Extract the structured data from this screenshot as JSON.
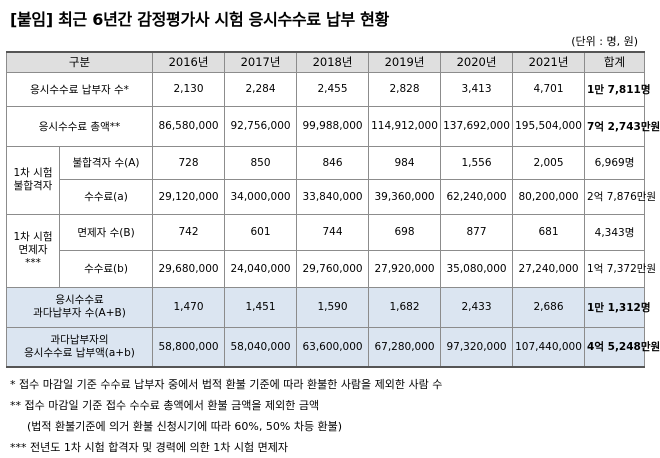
{
  "title": "[붙임] 최근 6년간 감정평가사 시험 응시수수료 납부 현황",
  "unit": "(단위 : 명, 원)",
  "header": {
    "category": "구분",
    "years": [
      "2016년",
      "2017년",
      "2018년",
      "2019년",
      "2020년",
      "2021년"
    ],
    "total": "합계"
  },
  "rows": {
    "payers": {
      "label": "응시수수료 납부자 수*",
      "values": [
        "2,130",
        "2,284",
        "2,455",
        "2,828",
        "3,413",
        "4,701"
      ],
      "total": "1만 7,811명"
    },
    "amount": {
      "label": "응시수수료 총액**",
      "values": [
        "86,580,000",
        "92,756,000",
        "99,988,000",
        "114,912,000",
        "137,692,000",
        "195,504,000"
      ],
      "total": "7억 2,743만원"
    },
    "fail_group": "1차 시험 불합격자",
    "fail_count": {
      "label": "불합격자 수(A)",
      "values": [
        "728",
        "850",
        "846",
        "984",
        "1,556",
        "2,005"
      ],
      "total": "6,969명"
    },
    "fail_fee": {
      "label": "수수료(a)",
      "values": [
        "29,120,000",
        "34,000,000",
        "33,840,000",
        "39,360,000",
        "62,240,000",
        "80,200,000"
      ],
      "total": "2억 7,876만원"
    },
    "exempt_group": "1차 시험 면제자 ***",
    "exempt_count": {
      "label": "면제자 수(B)",
      "values": [
        "742",
        "601",
        "744",
        "698",
        "877",
        "681"
      ],
      "total": "4,343명"
    },
    "exempt_fee": {
      "label": "수수료(b)",
      "values": [
        "29,680,000",
        "24,040,000",
        "29,760,000",
        "27,920,000",
        "35,080,000",
        "27,240,000"
      ],
      "total": "1억 7,372만원"
    },
    "over_count": {
      "label_line1": "응시수수료",
      "label_line2": "과다납부자 수(A+B)",
      "values": [
        "1,470",
        "1,451",
        "1,590",
        "1,682",
        "2,433",
        "2,686"
      ],
      "total": "1만 1,312명"
    },
    "over_fee": {
      "label_line1": "과다납부자의",
      "label_line2": "응시수수료 납부액(a+b)",
      "values": [
        "58,800,000",
        "58,040,000",
        "63,600,000",
        "67,280,000",
        "97,320,000",
        "107,440,000"
      ],
      "total": "4억 5,248만원"
    }
  },
  "notes": [
    "* 접수 마감일 기준 수수료 납부자 중에서 법적 환불 기준에 따라 환불한 사람을 제외한 사람 수",
    "** 접수 마감일 기준 접수 수수료 총액에서 환불 금액을 제외한 금액",
    "(법적 환불기준에 의거 환불 신청시기에 따라 60%, 50% 차등 환불)",
    "*** 전년도 1차 시험 합격자 및 경력에 의한 1차 시험 면제자"
  ]
}
